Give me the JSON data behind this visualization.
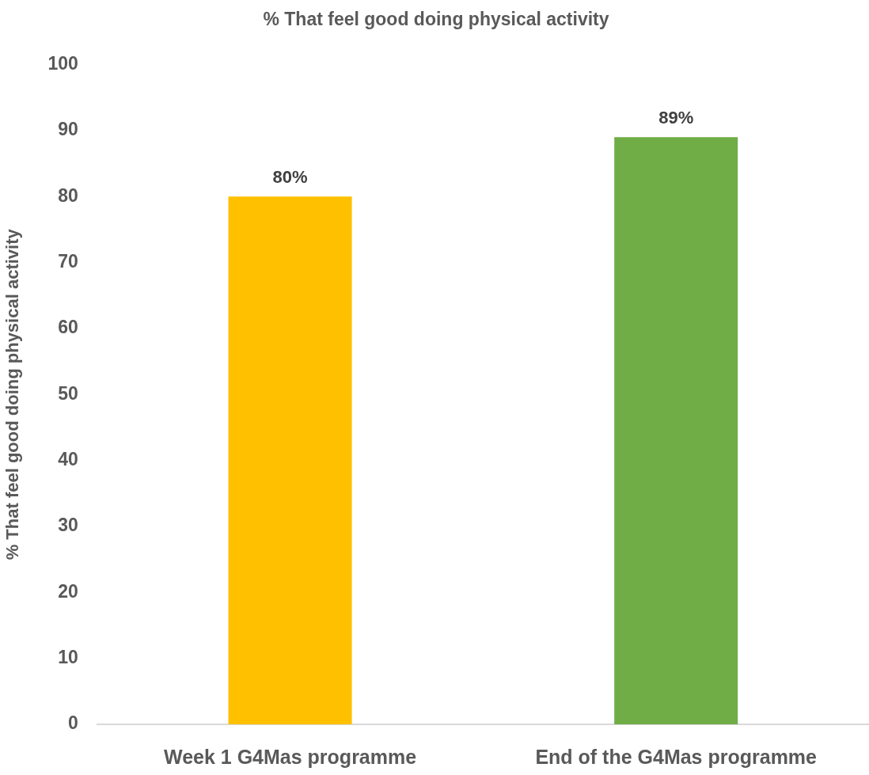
{
  "chart_data": {
    "type": "bar",
    "title": "% That feel good doing physical activity",
    "ylabel": "% That feel good doing physical activity",
    "categories": [
      "Week 1 G4Mas programme",
      "End of the G4Mas programme"
    ],
    "values": [
      80,
      89
    ],
    "colors": [
      "#ffc000",
      "#70ad47"
    ],
    "value_labels": [
      "80%",
      "89%"
    ],
    "ylim": [
      0,
      100
    ],
    "yticks": [
      0,
      10,
      20,
      30,
      40,
      50,
      60,
      70,
      80,
      90,
      100
    ]
  }
}
